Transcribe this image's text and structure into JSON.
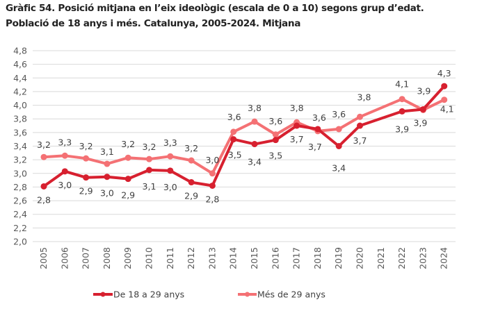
{
  "title": {
    "line1": "Gràfic 54. Posició mitjana en l’eix ideològic (escala de 0 a 10) segons grup d’edat.",
    "line2": "Població de 18 anys i més. Catalunya, 2005-2024. Mitjana"
  },
  "chart_data": {
    "type": "line",
    "title": "Gràfic 54. Posició mitjana en l’eix ideològic (escala de 0 a 10) segons grup d’edat. Població de 18 anys i més. Catalunya, 2005-2024. Mitjana",
    "xlabel": "",
    "ylabel": "",
    "ylim": [
      2.0,
      4.8
    ],
    "yticks": [
      "2,0",
      "2,2",
      "2,4",
      "2,6",
      "2,8",
      "3,0",
      "3,2",
      "3,4",
      "3,6",
      "3,8",
      "4,0",
      "4,2",
      "4,4",
      "4,6",
      "4,8"
    ],
    "grid": true,
    "legend_position": "bottom",
    "x": [
      "2005",
      "2006",
      "2007",
      "2008",
      "2009",
      "2010",
      "2011",
      "2012",
      "2013",
      "2014",
      "2015",
      "2016",
      "2017",
      "2018",
      "2019",
      "2020",
      "2021",
      "2022",
      "2023",
      "2024"
    ],
    "series": [
      {
        "name": "De 18 a 29 anys",
        "color": "#d7202f",
        "values": [
          2.81,
          3.03,
          2.94,
          2.95,
          2.92,
          3.05,
          3.04,
          2.87,
          2.82,
          3.5,
          3.43,
          3.49,
          3.7,
          3.65,
          3.4,
          3.7,
          null,
          3.91,
          3.94,
          4.28
        ],
        "labels": [
          "2,8",
          "3,0",
          "2,9",
          "3,0",
          "2,9",
          "3,1",
          "3,0",
          "2,9",
          "2,8",
          "3,5",
          "3,4",
          "3,5",
          "3,7",
          "3,7",
          "3,4",
          "3,7",
          null,
          "3,9",
          "3,9",
          "4,3"
        ]
      },
      {
        "name": "Més de 29 anys",
        "color": "#f47174",
        "values": [
          3.24,
          3.26,
          3.22,
          3.14,
          3.23,
          3.21,
          3.25,
          3.19,
          3.0,
          3.61,
          3.76,
          3.57,
          3.75,
          3.62,
          3.65,
          3.83,
          null,
          4.09,
          3.93,
          4.08
        ],
        "labels": [
          "3,2",
          "3,3",
          "3,2",
          "3,1",
          "3,2",
          "3,2",
          "3,3",
          "3,2",
          "3,0",
          "3,6",
          "3,8",
          "3,6",
          "3,8",
          "3,6",
          "3,6",
          "3,8",
          null,
          "4,1",
          "3,9",
          "4,1"
        ]
      }
    ]
  }
}
